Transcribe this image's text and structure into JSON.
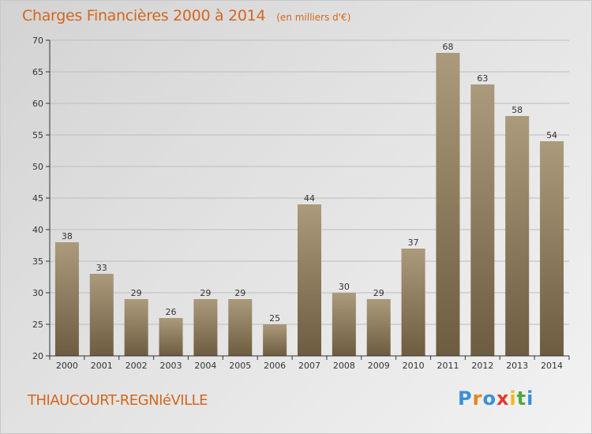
{
  "header": {
    "title": "Charges Financières 2000 à 2014",
    "subtitle": "(en milliers d'€)"
  },
  "footer": {
    "place": "THIAUCOURT-REGNIéVILLE",
    "logo_letters": [
      "P",
      "r",
      "o",
      "x",
      "i",
      "t",
      "i"
    ],
    "logo_colors": [
      "#3a8fd8",
      "#e8821c",
      "#3a8fd8",
      "#e13a2a",
      "#f0b821",
      "#4faa3a",
      "#3a8fd8"
    ]
  },
  "colors": {
    "bar_light": "#ab9a7c",
    "bar_dark": "#6e5c40",
    "title": "#d4661c",
    "axis": "#333333",
    "grid": "#bdbdbd"
  },
  "chart_data": {
    "type": "bar",
    "title": "Charges Financières 2000 à 2014",
    "subtitle": "(en milliers d'€)",
    "categories": [
      "2000",
      "2001",
      "2002",
      "2003",
      "2004",
      "2005",
      "2006",
      "2007",
      "2008",
      "2009",
      "2010",
      "2011",
      "2012",
      "2013",
      "2014"
    ],
    "values": [
      38,
      33,
      29,
      26,
      29,
      29,
      25,
      44,
      30,
      29,
      37,
      68,
      63,
      58,
      54
    ],
    "ylim": [
      20,
      70
    ],
    "yticks": [
      20,
      25,
      30,
      35,
      40,
      45,
      50,
      55,
      60,
      65,
      70
    ],
    "grid": true,
    "data_labels": true
  }
}
